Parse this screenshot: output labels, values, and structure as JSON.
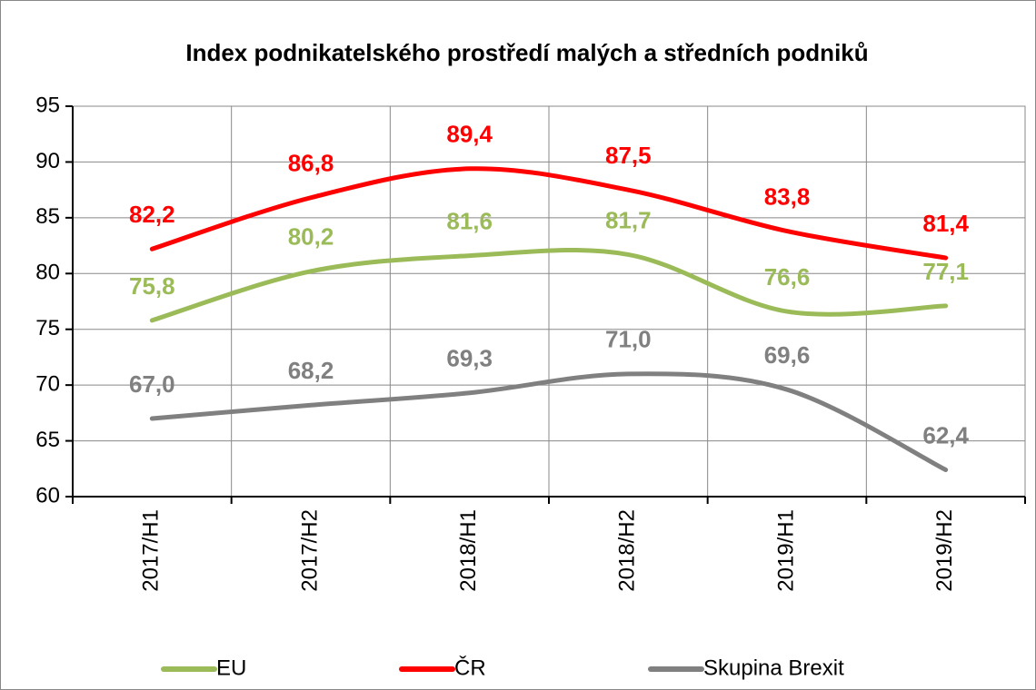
{
  "chart_data": {
    "type": "line",
    "title": "Index podnikatelského prostředí malých a středních podniků",
    "categories": [
      "2017/H1",
      "2017/H2",
      "2018/H1",
      "2018/H2",
      "2019/H1",
      "2019/H2"
    ],
    "series": [
      {
        "name": "EU",
        "color": "#9bbb59",
        "values": [
          75.8,
          80.2,
          81.6,
          81.7,
          76.6,
          77.1
        ],
        "value_labels": [
          "75,8",
          "80,2",
          "81,6",
          "81,7",
          "76,6",
          "77,1"
        ]
      },
      {
        "name": "ČR",
        "color": "#ff0000",
        "values": [
          82.2,
          86.8,
          89.4,
          87.5,
          83.8,
          81.4
        ],
        "value_labels": [
          "82,2",
          "86,8",
          "89,4",
          "87,5",
          "83,8",
          "81,4"
        ]
      },
      {
        "name": "Skupina Brexit",
        "color": "#808080",
        "values": [
          67.0,
          68.2,
          69.3,
          71.0,
          69.6,
          62.4
        ],
        "value_labels": [
          "67,0",
          "68,2",
          "69,3",
          "71,0",
          "69,6",
          "62,4"
        ]
      }
    ],
    "ylim": [
      60,
      95
    ],
    "yticks": [
      60,
      65,
      70,
      75,
      80,
      85,
      90,
      95
    ],
    "grid": true,
    "legend": "bottom"
  }
}
